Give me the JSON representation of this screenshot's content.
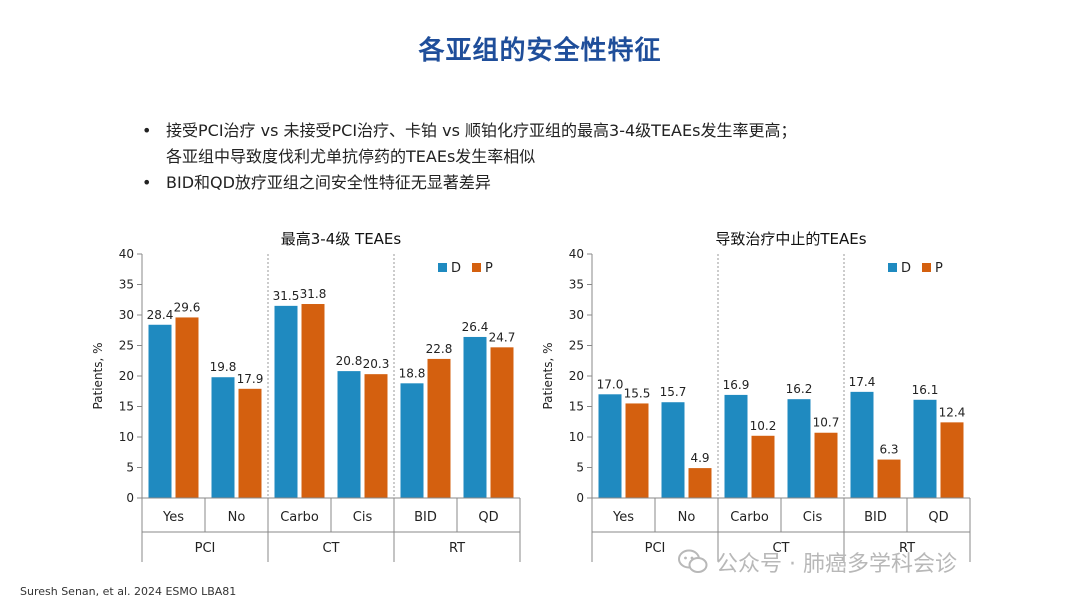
{
  "page": {
    "title": "各亚组的安全性特征",
    "bullets": [
      {
        "lines": [
          "接受PCI治疗 vs 未接受PCI治疗、卡铂 vs 顺铂化疗亚组的最高3-4级TEAEs发生率更高；",
          "各亚组中导致度伐利尤单抗停药的TEAEs发生率相似"
        ]
      },
      {
        "lines": [
          "BID和QD放疗亚组之间安全性特征无显著差异"
        ]
      }
    ],
    "bullet_glyph": "•",
    "footer": "Suresh Senan, et al. 2024 ESMO LBA81",
    "watermark": "公众号 · 肺癌多学科会诊",
    "watermark_icon": "wechat-icon"
  },
  "colors": {
    "D": "#1f8ac0",
    "P": "#d4600f",
    "title": "#1f4e9a"
  },
  "chart_data": [
    {
      "type": "bar",
      "title": "最高3-4级 TEAEs",
      "ylabel": "Patients, %",
      "ylim": [
        0,
        40
      ],
      "yticks": [
        0,
        5,
        10,
        15,
        20,
        25,
        30,
        35,
        40
      ],
      "categories": [
        "Yes",
        "No",
        "Carbo",
        "Cis",
        "BID",
        "QD"
      ],
      "groups": [
        {
          "label": "PCI",
          "categories": [
            "Yes",
            "No"
          ]
        },
        {
          "label": "CT",
          "categories": [
            "Carbo",
            "Cis"
          ]
        },
        {
          "label": "RT",
          "categories": [
            "BID",
            "QD"
          ]
        }
      ],
      "series": [
        {
          "name": "D",
          "values": [
            28.4,
            19.8,
            31.5,
            20.8,
            18.8,
            26.4
          ]
        },
        {
          "name": "P",
          "values": [
            29.6,
            17.9,
            31.8,
            20.3,
            22.8,
            24.7
          ]
        }
      ],
      "data_labels": [
        [
          "28.4",
          "19.8",
          "31.5",
          "20.8",
          "18.8",
          "26.4"
        ],
        [
          "29.6",
          "17.9",
          "31.8",
          "20.3",
          "22.8",
          "24.7"
        ]
      ],
      "legend": "top-right",
      "grid": false
    },
    {
      "type": "bar",
      "title": "导致治疗中止的TEAEs",
      "ylabel": "Patients, %",
      "ylim": [
        0,
        40
      ],
      "yticks": [
        0,
        5,
        10,
        15,
        20,
        25,
        30,
        35,
        40
      ],
      "categories": [
        "Yes",
        "No",
        "Carbo",
        "Cis",
        "BID",
        "QD"
      ],
      "groups": [
        {
          "label": "PCI",
          "categories": [
            "Yes",
            "No"
          ]
        },
        {
          "label": "CT",
          "categories": [
            "Carbo",
            "Cis"
          ]
        },
        {
          "label": "RT",
          "categories": [
            "BID",
            "QD"
          ]
        }
      ],
      "series": [
        {
          "name": "D",
          "values": [
            17.0,
            15.7,
            16.9,
            16.2,
            17.4,
            16.1
          ]
        },
        {
          "name": "P",
          "values": [
            15.5,
            4.9,
            10.2,
            10.7,
            6.3,
            12.4
          ]
        }
      ],
      "data_labels": [
        [
          "17.0",
          "15.7",
          "16.9",
          "16.2",
          "17.4",
          "16.1"
        ],
        [
          "15.5",
          "4.9",
          "10.2",
          "10.7",
          "6.3",
          "12.4"
        ]
      ],
      "legend": "top-right",
      "grid": false
    }
  ]
}
